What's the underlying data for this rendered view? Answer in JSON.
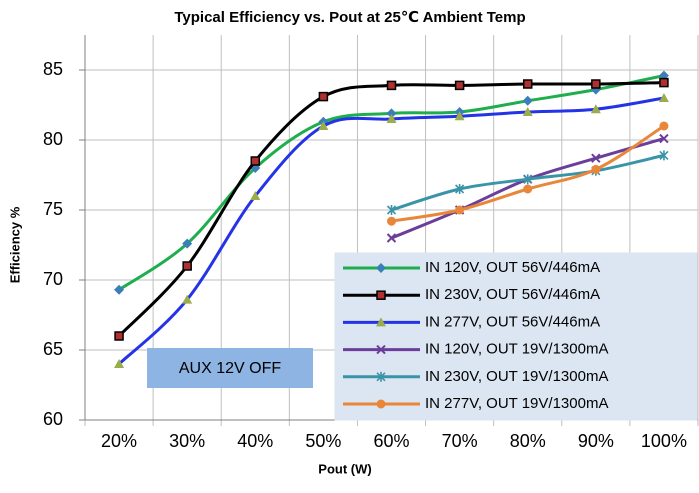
{
  "chart_data": {
    "type": "line",
    "title": "Typical Efficiency vs. Pout at 25℃  Ambient Temp",
    "x_label": "Pout (W)",
    "y_label": "Efficiency %",
    "annotation": "AUX 12V OFF",
    "categories": [
      "20%",
      "30%",
      "40%",
      "50%",
      "60%",
      "70%",
      "80%",
      "90%",
      "100%"
    ],
    "ylim": [
      60,
      87.5
    ],
    "yticks": [
      60,
      65,
      70,
      75,
      80,
      85
    ],
    "grid": true,
    "smooth": true,
    "legend": "lower right",
    "series": [
      {
        "name": "IN 120V, OUT 56V/446mA",
        "color": "#1fae4e",
        "marker": "diamond",
        "marker_color": "#3a7fb8",
        "values": [
          69.3,
          72.6,
          78.0,
          81.3,
          81.9,
          82.0,
          82.8,
          83.6,
          84.6
        ]
      },
      {
        "name": "IN 230V, OUT 56V/446mA",
        "color": "#000000",
        "marker": "square",
        "marker_color": "#b03030",
        "values": [
          66.0,
          71.0,
          78.5,
          83.1,
          83.9,
          83.9,
          84.0,
          84.0,
          84.1
        ]
      },
      {
        "name": "IN 277V, OUT 56V/446mA",
        "color": "#2433e6",
        "marker": "triangle",
        "marker_color": "#9bad4a",
        "values": [
          64.0,
          68.6,
          76.0,
          81.0,
          81.5,
          81.7,
          82.0,
          82.2,
          83.0
        ]
      },
      {
        "name": "IN 120V, OUT 19V/1300mA",
        "color": "#6b3e9a",
        "marker": "x",
        "marker_color": "#6b3e9a",
        "values": [
          null,
          null,
          null,
          null,
          73.0,
          75.0,
          77.2,
          78.7,
          80.1
        ]
      },
      {
        "name": "IN 230V, OUT 19V/1300mA",
        "color": "#3a94a8",
        "marker": "star",
        "marker_color": "#3a94a8",
        "values": [
          null,
          null,
          null,
          null,
          75.0,
          76.5,
          77.2,
          77.8,
          78.9
        ]
      },
      {
        "name": "IN 277V, OUT 19V/1300mA",
        "color": "#e8873a",
        "marker": "circle",
        "marker_color": "#e8873a",
        "values": [
          null,
          null,
          null,
          null,
          74.2,
          75.0,
          76.5,
          77.9,
          81.0
        ]
      }
    ]
  }
}
